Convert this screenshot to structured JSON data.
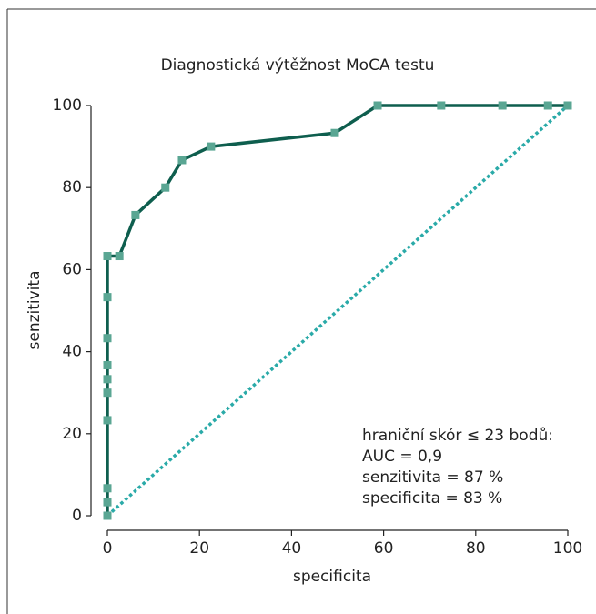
{
  "chart_data": {
    "type": "line",
    "title": "Diagnostická výtěžnost MoCA testu",
    "xlabel": "specificita",
    "ylabel": "senzitivita",
    "xlim": [
      0,
      100
    ],
    "ylim": [
      0,
      100
    ],
    "xticks": [
      0,
      20,
      40,
      60,
      80,
      100
    ],
    "yticks": [
      0,
      20,
      40,
      60,
      80,
      100
    ],
    "series": [
      {
        "color": "#0e5e4e",
        "marker_color": "#5aa693",
        "x": [
          0,
          0,
          0,
          0,
          0,
          0,
          0,
          0,
          0,
          0,
          2.6,
          6.1,
          12.6,
          16.2,
          22.5,
          49.4,
          58.7,
          72.5,
          85.8,
          95.7,
          100
        ],
        "values": [
          0,
          3.3,
          6.7,
          23.3,
          30,
          33.3,
          36.7,
          43.3,
          53.3,
          63.3,
          63.3,
          73.3,
          80,
          86.7,
          90,
          93.3,
          100,
          100,
          100,
          100,
          100
        ]
      },
      {
        "color": "#2aaaa8",
        "dotted": true,
        "x": [
          0,
          100
        ],
        "values": [
          0,
          100
        ]
      }
    ],
    "annotations": [
      "hraniční skór ≤ 23 bodů:",
      "AUC = 0,9",
      "senzitivita = 87 %",
      "specificita = 83 %"
    ]
  }
}
